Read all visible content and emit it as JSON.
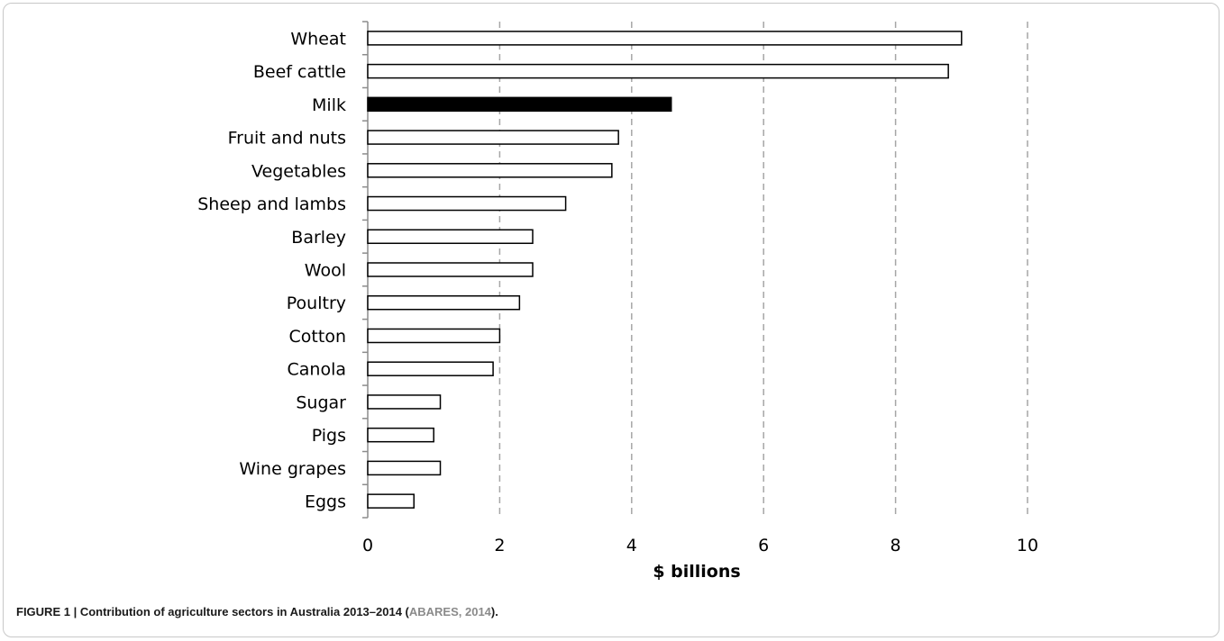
{
  "chart_data": {
    "type": "bar",
    "orientation": "horizontal",
    "title": "",
    "xlabel": "$ billions",
    "ylabel": "",
    "xlim": [
      0,
      10
    ],
    "x_ticks": [
      0,
      2,
      4,
      6,
      8,
      10
    ],
    "grid": "vertical dashed",
    "legend": "none",
    "categories": [
      "Wheat",
      "Beef cattle",
      "Milk",
      "Fruit and nuts",
      "Vegetables",
      "Sheep and lambs",
      "Barley",
      "Wool",
      "Poultry",
      "Cotton",
      "Canola",
      "Sugar",
      "Pigs",
      "Wine grapes",
      "Eggs"
    ],
    "values": [
      9.0,
      8.8,
      4.6,
      3.8,
      3.7,
      3.0,
      2.5,
      2.5,
      2.3,
      2.0,
      1.9,
      1.1,
      1.0,
      1.1,
      0.7
    ],
    "highlight": "Milk",
    "colors": {
      "bar_fill": "#ffffff",
      "bar_stroke": "#000000",
      "highlight_fill": "#000000",
      "grid": "#a6a6a6"
    }
  },
  "caption": {
    "prefix": "FIGURE 1 | Contribution of agriculture sectors in Australia 2013–2014 (",
    "citation": "ABARES, 2014",
    "suffix": ")."
  }
}
